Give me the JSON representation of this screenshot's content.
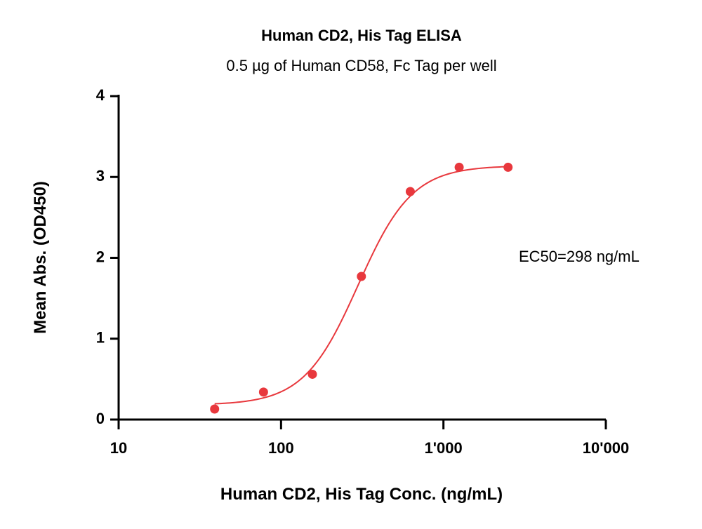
{
  "chart_data": {
    "type": "scatter",
    "title": "Human CD2, His Tag ELISA",
    "subtitle": "0.5 µg of Human CD58, Fc Tag per well",
    "xlabel": "Human CD2, His Tag Conc. (ng/mL)",
    "ylabel": "Mean Abs. (OD450)",
    "x_scale": "log",
    "xlim": [
      10,
      10000
    ],
    "ylim": [
      0,
      4
    ],
    "x_ticks": [
      10,
      100,
      1000,
      10000
    ],
    "x_tick_labels": [
      "10",
      "100",
      "1'000",
      "10'000"
    ],
    "y_ticks": [
      0,
      1,
      2,
      3,
      4
    ],
    "y_tick_labels": [
      "0",
      "1",
      "2",
      "3",
      "4"
    ],
    "grid": false,
    "color": "#e8383d",
    "points": {
      "x": [
        39,
        78,
        156,
        312.5,
        625,
        1250,
        2500
      ],
      "y": [
        0.13,
        0.34,
        0.56,
        1.77,
        2.82,
        3.12,
        3.12
      ]
    },
    "fit": {
      "model": "4PL",
      "bottom": 0.18,
      "top": 3.14,
      "ec50": 298,
      "hill": 2.6,
      "x_range": [
        39,
        2500
      ]
    },
    "annotation": "EC50=298  ng/mL"
  }
}
